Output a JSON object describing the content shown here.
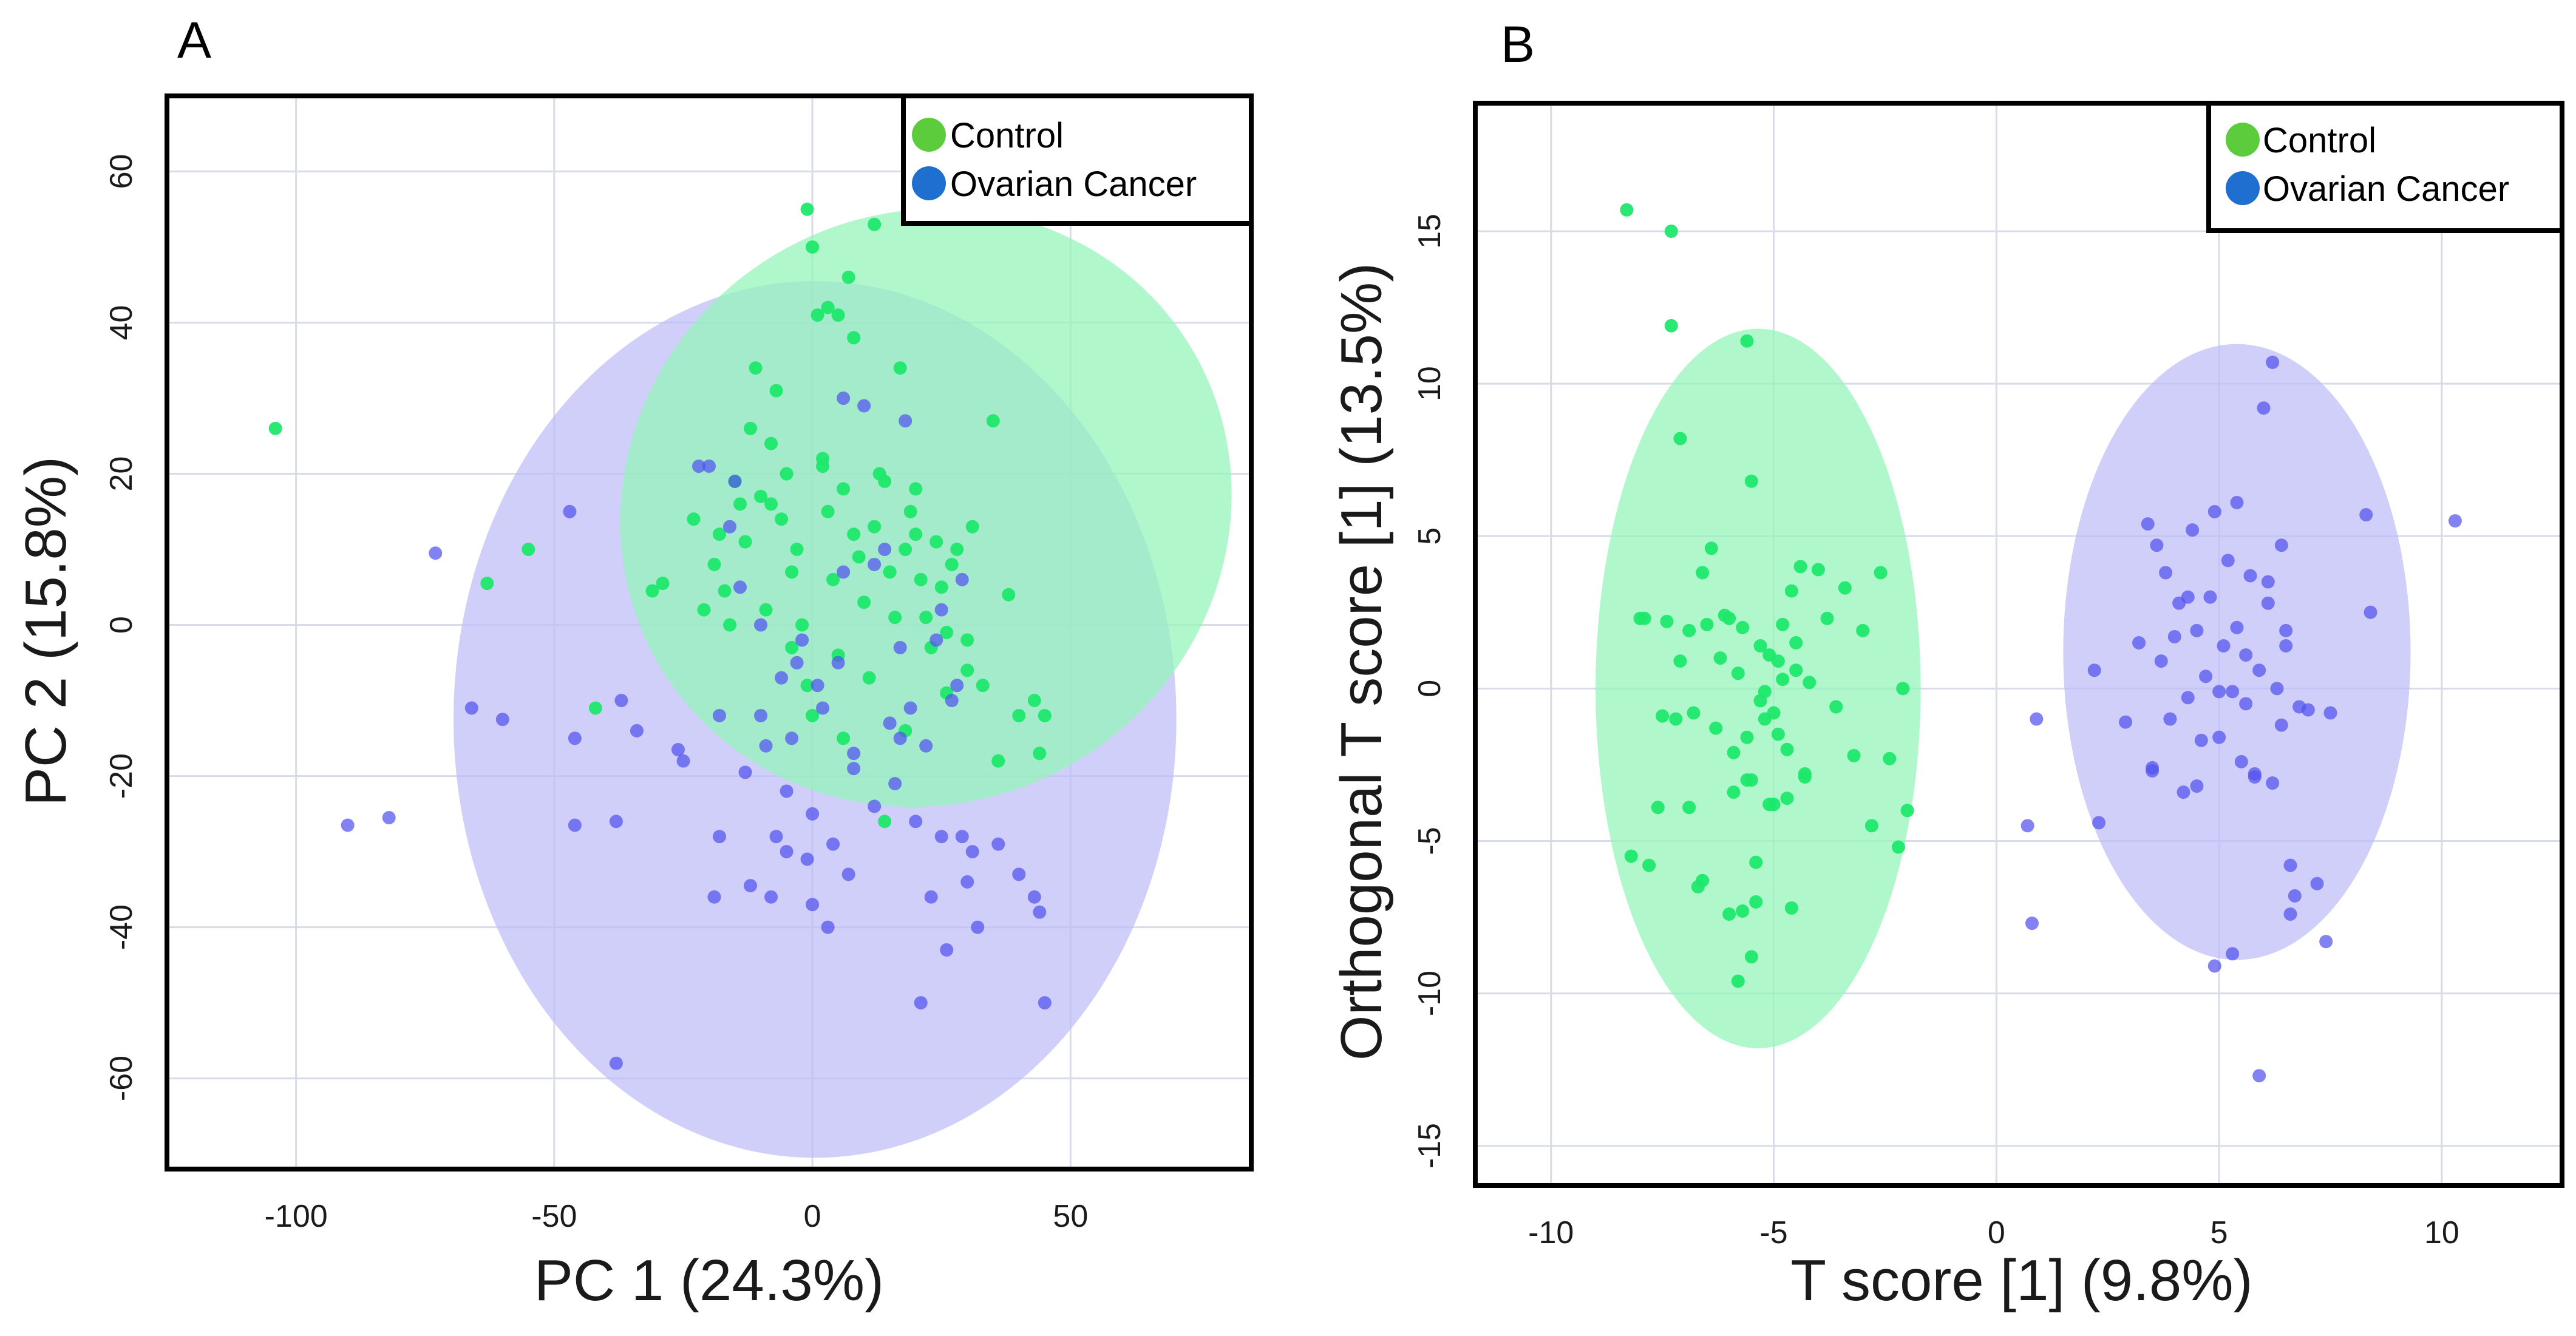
{
  "chart_data": [
    {
      "type": "scatter",
      "panel_label": "A",
      "title": "",
      "xlabel": "PC 1 (24.3%)",
      "ylabel": "PC 2 (15.8%)",
      "xlim": [
        -125,
        85
      ],
      "ylim": [
        -72,
        70
      ],
      "xticks": [
        -100,
        -50,
        0,
        50
      ],
      "yticks": [
        -60,
        -40,
        -20,
        0,
        20,
        40,
        60
      ],
      "grid": true,
      "legend_position": "top-right",
      "legend": [
        "Control",
        "Ovarian Cancer"
      ],
      "colors": {
        "Control": "#1ee86a",
        "Ovarian Cancer": "#5252ef",
        "control_ellipse": "#92f5b8",
        "cancer_ellipse": "#bcbcf8",
        "legend_control": "#5dcc3c",
        "legend_cancer": "#1f6fd0"
      },
      "ellipses": [
        {
          "series": "Ovarian Cancer",
          "center": [
            0.5,
            -12.5
          ],
          "radii": [
            70,
            58
          ],
          "angle": 0
        },
        {
          "series": "Control",
          "center": [
            22,
            15.5
          ],
          "radii": [
            60,
            39
          ],
          "angle": -32
        }
      ],
      "series": [
        {
          "name": "Control",
          "x": [
            -104,
            -63,
            -55,
            -42,
            -31,
            -29,
            -23,
            -21,
            -19,
            -18,
            -17,
            -16,
            -15,
            -14,
            -13,
            -12,
            -11,
            -10,
            -9,
            -8,
            -7,
            -6,
            -5,
            -4,
            -3,
            -2,
            -1,
            0,
            1,
            2,
            3,
            4,
            5,
            6,
            7,
            8,
            9,
            10,
            11,
            12,
            13,
            14,
            15,
            16,
            17,
            18,
            19,
            20,
            21,
            22,
            23,
            24,
            25,
            26,
            27,
            28,
            30,
            31,
            33,
            35,
            36,
            38,
            40,
            43,
            44,
            45,
            -1,
            0,
            3,
            5,
            8,
            12,
            18,
            -8,
            -4,
            2,
            6,
            14,
            20,
            26,
            30
          ],
          "y": [
            26,
            5.5,
            10,
            -11,
            4.5,
            5.5,
            14,
            2,
            8,
            12,
            4.5,
            0,
            19,
            16,
            11,
            26,
            34,
            17,
            2,
            24,
            31,
            14,
            20,
            -3,
            10,
            0,
            -8,
            -12,
            41,
            22,
            15,
            6,
            -4,
            18,
            46,
            12,
            9,
            3,
            -7,
            53,
            20,
            19,
            7,
            1,
            34,
            10,
            15,
            12,
            6,
            1,
            -3,
            11,
            5,
            -1,
            8,
            10,
            -6,
            13,
            -8,
            27,
            -18,
            4,
            -12,
            -10,
            -17,
            -12,
            55,
            50,
            42,
            41,
            38,
            13,
            -14,
            16,
            7,
            21,
            -15,
            -26,
            18,
            -9,
            -2
          ]
        },
        {
          "name": "Ovarian Cancer",
          "x": [
            -90,
            -82,
            -73,
            -66,
            -60,
            -47,
            -46,
            -46,
            -38,
            -37,
            -34,
            -26,
            -25,
            -22,
            -19,
            -18,
            -16,
            -15,
            -13,
            -12,
            -10,
            -8,
            -7,
            -6,
            -5,
            -4,
            -3,
            -2,
            -1,
            0,
            1,
            2,
            3,
            4,
            5,
            6,
            7,
            8,
            10,
            12,
            14,
            15,
            16,
            17,
            18,
            20,
            21,
            22,
            23,
            24,
            25,
            26,
            27,
            28,
            29,
            30,
            31,
            32,
            36,
            40,
            43,
            44,
            45,
            -38,
            -20,
            -14,
            -10,
            6,
            8,
            12,
            17,
            19,
            25,
            29,
            0,
            -5,
            -9,
            -18
          ],
          "y": [
            -26.5,
            -25.5,
            9.5,
            -11,
            -12.5,
            15,
            -26.5,
            -15,
            -58,
            -10,
            -14,
            -16.5,
            -18,
            21,
            -36,
            -12,
            13,
            19,
            -19.5,
            -34.5,
            -12,
            -36,
            -28,
            -7,
            -22,
            -15,
            -5,
            -2,
            -31,
            -37,
            -8,
            -11,
            -40,
            -29,
            -5,
            7,
            -33,
            -17,
            29,
            -24,
            10,
            -13,
            -21,
            -3,
            27,
            -26,
            -50,
            -16,
            -36,
            -2,
            2,
            -43,
            -10,
            -8,
            6,
            -34,
            -30,
            -40,
            -29,
            -33,
            -36,
            -38,
            -50,
            -26,
            21,
            5,
            0,
            30,
            -19,
            8,
            -15,
            -11,
            -28,
            -28,
            -25,
            -30,
            -16,
            -28
          ]
        }
      ]
    },
    {
      "type": "scatter",
      "panel_label": "B",
      "title": "",
      "xlabel": "T score [1] (9.8%)",
      "ylabel": "Orthogonal T score [1] (13.5%)",
      "xlim": [
        -11.7,
        12.7
      ],
      "ylim": [
        -16.3,
        19.2
      ],
      "xticks": [
        -10,
        -5,
        0,
        5,
        10
      ],
      "yticks": [
        -15,
        -10,
        -5,
        0,
        5,
        10,
        15
      ],
      "grid": true,
      "legend_position": "top-right",
      "legend": [
        "Control",
        "Ovarian Cancer"
      ],
      "colors": {
        "Control": "#1ee86a",
        "Ovarian Cancer": "#5252ef",
        "control_ellipse": "#92f5b8",
        "cancer_ellipse": "#bcbcf8",
        "legend_control": "#5dcc3c",
        "legend_cancer": "#1f6fd0"
      },
      "ellipses": [
        {
          "series": "Control",
          "center": [
            -5.35,
            0
          ],
          "radii": [
            3.65,
            11.8
          ],
          "angle": 0
        },
        {
          "series": "Ovarian Cancer",
          "center": [
            5.4,
            1.2
          ],
          "radii": [
            3.9,
            10.1
          ],
          "angle": 0
        }
      ],
      "series": [
        {
          "name": "Control",
          "x": [
            -8.3,
            -7.3,
            -7.3,
            -7.1,
            -5.6,
            -5.5,
            -8.0,
            -8.2,
            -7.2,
            -6.9,
            -6.7,
            -6.6,
            -6.4,
            -6.2,
            -6.0,
            -5.9,
            -5.8,
            -5.7,
            -5.6,
            -5.5,
            -5.4,
            -5.3,
            -5.2,
            -5.1,
            -5.0,
            -4.9,
            -4.8,
            -4.7,
            -4.6,
            -4.5,
            -4.4,
            -4.3,
            -4.2,
            -4.0,
            -3.8,
            -3.6,
            -3.4,
            -3.2,
            -3.0,
            -2.8,
            -2.6,
            -2.4,
            -2.2,
            -2.1,
            -2.0,
            -7.8,
            -7.6,
            -7.4,
            -7.1,
            -6.8,
            -6.5,
            -6.3,
            -6.1,
            -5.9,
            -5.7,
            -5.5,
            -5.3,
            -5.1,
            -4.9,
            -4.7,
            -4.5,
            -4.3,
            -6.0,
            -5.8,
            -5.4,
            -5.0,
            -4.6,
            -6.6,
            -6.9,
            -7.5,
            -7.9,
            -4.8,
            -5.2,
            -5.6
          ],
          "y": [
            15.7,
            15.0,
            11.9,
            8.2,
            11.4,
            6.8,
            2.3,
            -5.5,
            -1.0,
            1.9,
            -6.5,
            3.8,
            4.6,
            1.0,
            2.3,
            -2.1,
            0.5,
            2.0,
            -1.6,
            -3.0,
            -5.7,
            1.4,
            -0.1,
            -3.8,
            -0.8,
            0.9,
            2.1,
            -3.6,
            3.2,
            1.5,
            4.0,
            -2.8,
            0.2,
            3.9,
            2.3,
            -0.6,
            3.3,
            -2.2,
            1.9,
            -4.5,
            3.8,
            -2.3,
            -5.2,
            0.0,
            -4.0,
            -5.8,
            -3.9,
            2.2,
            0.9,
            -0.8,
            2.1,
            -1.3,
            2.4,
            -3.4,
            -7.3,
            -8.8,
            -0.4,
            1.1,
            -1.5,
            -2.0,
            0.6,
            -2.9,
            -7.4,
            -9.6,
            -7.0,
            -3.8,
            -7.2,
            -6.3,
            -3.9,
            -0.9,
            2.3,
            0.3,
            -1.0,
            -3.0
          ]
        },
        {
          "name": "Ovarian Cancer",
          "x": [
            0.7,
            0.8,
            0.9,
            2.2,
            2.3,
            2.9,
            3.2,
            3.4,
            3.5,
            3.6,
            3.7,
            3.8,
            3.9,
            4.0,
            4.1,
            4.2,
            4.3,
            4.4,
            4.5,
            4.6,
            4.7,
            4.8,
            4.9,
            5.0,
            5.1,
            5.2,
            5.3,
            5.4,
            5.5,
            5.6,
            5.7,
            5.8,
            5.9,
            6.0,
            6.1,
            6.2,
            6.3,
            6.4,
            6.5,
            6.6,
            6.7,
            6.8,
            7.0,
            7.2,
            7.4,
            7.5,
            8.3,
            8.4,
            10.3,
            6.2,
            5.9,
            4.9,
            5.3,
            6.6,
            3.5,
            4.5,
            5.0,
            5.6,
            6.1,
            6.4,
            4.3,
            5.4,
            5.8,
            6.5
          ],
          "y": [
            -4.5,
            -7.7,
            -1.0,
            0.6,
            -4.4,
            -1.1,
            1.5,
            5.4,
            -2.7,
            4.7,
            0.9,
            3.8,
            -1.0,
            1.7,
            2.8,
            -3.4,
            -0.3,
            5.2,
            1.9,
            -1.7,
            0.4,
            3.0,
            5.8,
            -1.6,
            1.4,
            4.2,
            -0.1,
            6.1,
            -2.4,
            1.1,
            3.7,
            -2.9,
            0.6,
            9.2,
            2.8,
            -3.1,
            0.0,
            4.7,
            1.9,
            -5.8,
            -6.8,
            -0.6,
            -0.7,
            -6.4,
            -8.3,
            -0.8,
            5.7,
            2.5,
            5.5,
            10.7,
            -12.7,
            -9.1,
            -8.7,
            -7.4,
            -2.6,
            -3.2,
            -0.1,
            -0.5,
            3.5,
            -1.2,
            3.0,
            2.0,
            -2.8,
            1.4
          ]
        }
      ]
    }
  ]
}
